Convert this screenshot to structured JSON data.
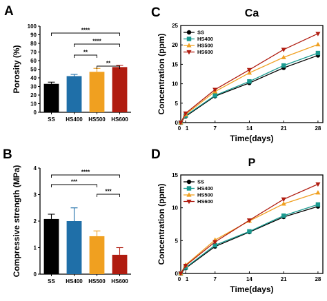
{
  "chart_data": [
    {
      "panel": "A",
      "type": "bar",
      "title": "",
      "ylabel": "Porosity (%)",
      "xlabel": "",
      "categories": [
        "SS",
        "HS400",
        "HS500",
        "HS600"
      ],
      "values": [
        33,
        42,
        47,
        52.5
      ],
      "errors": [
        2,
        2,
        4,
        2
      ],
      "colors": [
        "#000000",
        "#1f6fa8",
        "#f0a020",
        "#b01c10"
      ],
      "ylim": [
        0,
        100
      ],
      "yticks": [
        0,
        10,
        20,
        30,
        40,
        50,
        60,
        70,
        80,
        90,
        100
      ],
      "significance": [
        {
          "from": 0,
          "to": 3,
          "label": "****"
        },
        {
          "from": 1,
          "to": 3,
          "label": "****"
        },
        {
          "from": 1,
          "to": 2,
          "label": "**"
        },
        {
          "from": 2,
          "to": 3,
          "label": "**"
        }
      ]
    },
    {
      "panel": "B",
      "type": "bar",
      "title": "",
      "ylabel": "Compressive strength (MPa)",
      "xlabel": "",
      "categories": [
        "SS",
        "HS400",
        "HS500",
        "HS600"
      ],
      "values": [
        2.08,
        2.0,
        1.43,
        0.73
      ],
      "errors": [
        0.18,
        0.5,
        0.2,
        0.27
      ],
      "colors": [
        "#000000",
        "#1f6fa8",
        "#f0a020",
        "#b01c10"
      ],
      "ylim": [
        0,
        4
      ],
      "yticks": [
        0,
        1,
        2,
        3,
        4
      ],
      "significance": [
        {
          "from": 0,
          "to": 3,
          "label": "****"
        },
        {
          "from": 0,
          "to": 2,
          "label": "***"
        },
        {
          "from": 2,
          "to": 3,
          "label": "***"
        }
      ]
    },
    {
      "panel": "C",
      "type": "line",
      "title": "Ca",
      "xlabel": "Time(days)",
      "ylabel": "Concentration (ppm)",
      "x": [
        0,
        1,
        7,
        14,
        21,
        28
      ],
      "xticks": [
        0,
        1,
        7,
        14,
        21,
        28
      ],
      "xlim": [
        0,
        29
      ],
      "ylim": [
        0,
        25
      ],
      "yticks": [
        0,
        5,
        10,
        15,
        20,
        25
      ],
      "legend": "top-left",
      "series": [
        {
          "name": "SS",
          "color": "#000000",
          "marker": "circle",
          "values": [
            0,
            1.6,
            6.8,
            10.2,
            14.1,
            17.3
          ]
        },
        {
          "name": "HS400",
          "color": "#1a9a90",
          "marker": "square",
          "values": [
            0,
            1.8,
            7.0,
            10.6,
            14.7,
            17.9
          ]
        },
        {
          "name": "HS500",
          "color": "#f0a020",
          "marker": "triangle-up",
          "values": [
            0,
            2.1,
            8.0,
            12.8,
            16.8,
            20.1
          ]
        },
        {
          "name": "HS600",
          "color": "#b01c10",
          "marker": "triangle-down",
          "values": [
            0,
            2.4,
            8.5,
            13.6,
            18.8,
            22.9
          ]
        }
      ]
    },
    {
      "panel": "D",
      "type": "line",
      "title": "P",
      "xlabel": "Time(days)",
      "ylabel": "Concentration (ppm)",
      "x": [
        0,
        1,
        7,
        14,
        21,
        28
      ],
      "xticks": [
        0,
        1,
        7,
        14,
        21,
        28
      ],
      "xlim": [
        0,
        29
      ],
      "ylim": [
        0,
        15
      ],
      "yticks": [
        0,
        5,
        10,
        15
      ],
      "legend": "top-left",
      "series": [
        {
          "name": "SS",
          "color": "#000000",
          "marker": "circle",
          "values": [
            0,
            0.8,
            4.1,
            6.3,
            8.6,
            10.2
          ]
        },
        {
          "name": "HS400",
          "color": "#1a9a90",
          "marker": "square",
          "values": [
            0,
            0.9,
            4.3,
            6.4,
            8.8,
            10.5
          ]
        },
        {
          "name": "HS500",
          "color": "#f0a020",
          "marker": "triangle-up",
          "values": [
            0,
            1.3,
            5.1,
            8.0,
            10.6,
            12.3
          ]
        },
        {
          "name": "HS600",
          "color": "#b01c10",
          "marker": "triangle-down",
          "values": [
            0,
            1.2,
            4.8,
            8.1,
            11.3,
            13.6
          ]
        }
      ]
    }
  ]
}
